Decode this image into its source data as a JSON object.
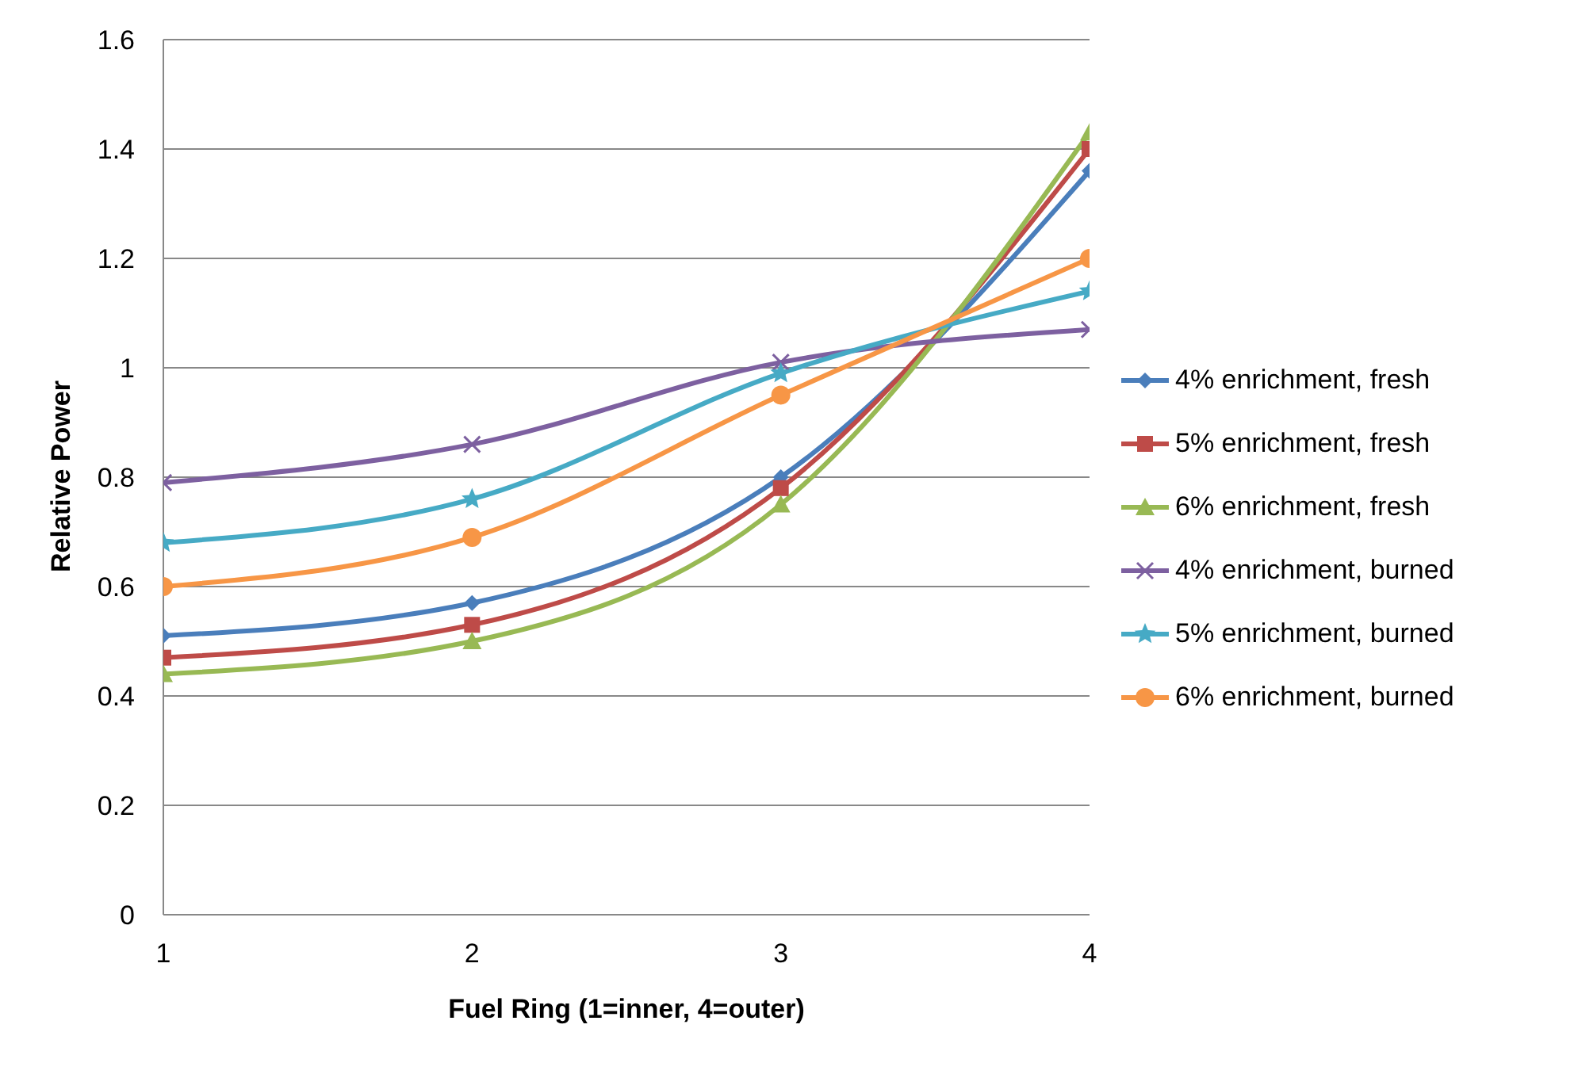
{
  "chart_data": {
    "type": "line",
    "xlabel": "Fuel Ring (1=inner, 4=outer)",
    "ylabel": "Relative Power",
    "x": [
      1,
      2,
      3,
      4
    ],
    "xlim": [
      1,
      4
    ],
    "xticks": [
      1,
      2,
      3,
      4
    ],
    "ylim": [
      0,
      1.6
    ],
    "yticks": [
      0,
      0.2,
      0.4,
      0.6,
      0.8,
      1,
      1.2,
      1.4,
      1.6
    ],
    "grid": "y",
    "legend": "right",
    "series": [
      {
        "name": "4% enrichment, fresh",
        "color": "#4a7ebb",
        "marker": "diamond",
        "values": [
          0.51,
          0.57,
          0.8,
          1.36
        ]
      },
      {
        "name": "5% enrichment, fresh",
        "color": "#be4b48",
        "marker": "square",
        "values": [
          0.47,
          0.53,
          0.78,
          1.4
        ]
      },
      {
        "name": "6% enrichment, fresh",
        "color": "#98b954",
        "marker": "triangle",
        "values": [
          0.44,
          0.5,
          0.75,
          1.43
        ]
      },
      {
        "name": "4% enrichment, burned",
        "color": "#7d60a0",
        "marker": "cross",
        "values": [
          0.79,
          0.86,
          1.01,
          1.07
        ]
      },
      {
        "name": "5% enrichment, burned",
        "color": "#46aac5",
        "marker": "star",
        "values": [
          0.68,
          0.76,
          0.99,
          1.14
        ]
      },
      {
        "name": "6% enrichment, burned",
        "color": "#f79646",
        "marker": "circle",
        "values": [
          0.6,
          0.69,
          0.95,
          1.2
        ]
      }
    ]
  }
}
